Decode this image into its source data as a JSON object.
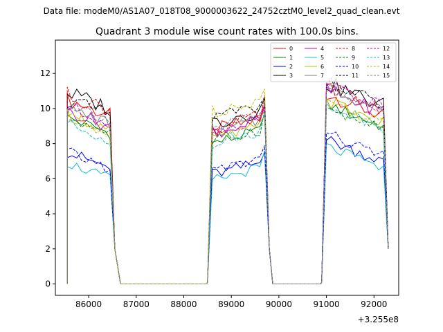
{
  "suptitle": "Data file: modeM0/AS1A07_018T08_9000003622_24752cztM0_level2_quad_clean.evt",
  "chart_data": {
    "type": "line",
    "title": "Quadrant 3 module wise count rates with 100.0s bins.",
    "xlabel": "",
    "ylabel": "",
    "offset_text": "+3.255e8",
    "xlim": [
      85300,
      92520
    ],
    "ylim": [
      -0.65,
      13.9
    ],
    "xticks": [
      86000,
      87000,
      88000,
      89000,
      90000,
      91000,
      92000
    ],
    "xtick_labels": [
      "86000",
      "87000",
      "88000",
      "89000",
      "90000",
      "91000",
      "92000"
    ],
    "yticks": [
      0,
      2,
      4,
      6,
      8,
      10,
      12
    ],
    "ytick_labels": [
      "0",
      "2",
      "4",
      "6",
      "8",
      "10",
      "12"
    ],
    "grid": false,
    "legend_placement": "top-right",
    "legend_columns": 4,
    "segments": [
      {
        "start": 85550,
        "end": 86550,
        "step": 100
      },
      {
        "start": 88500,
        "end": 89750,
        "step": 100
      },
      {
        "start": 90900,
        "end": 92300,
        "step": 100
      }
    ],
    "series": [
      {
        "name": "0",
        "color": "#ff0000",
        "dash": "solid",
        "levels": [
          10.0,
          9.1,
          10.2
        ],
        "variation": 0.45
      },
      {
        "name": "1",
        "color": "#008000",
        "dash": "solid",
        "levels": [
          9.0,
          8.4,
          9.6
        ],
        "variation": 0.35
      },
      {
        "name": "2",
        "color": "#0000ff",
        "dash": "solid",
        "levels": [
          7.0,
          6.6,
          7.6
        ],
        "variation": 0.35
      },
      {
        "name": "3",
        "color": "#000000",
        "dash": "solid",
        "levels": [
          10.4,
          9.6,
          10.8
        ],
        "variation": 0.5
      },
      {
        "name": "4",
        "color": "#bf00bf",
        "dash": "solid",
        "levels": [
          9.4,
          9.0,
          10.4
        ],
        "variation": 0.4
      },
      {
        "name": "5",
        "color": "#17becf",
        "dash": "solid",
        "levels": [
          6.4,
          6.3,
          7.2
        ],
        "variation": 0.3
      },
      {
        "name": "6",
        "color": "#bfbf00",
        "dash": "solid",
        "levels": [
          9.2,
          8.6,
          9.8
        ],
        "variation": 0.4
      },
      {
        "name": "7",
        "color": "#7f7f7f",
        "dash": "solid",
        "levels": [
          9.5,
          9.0,
          10.6
        ],
        "variation": 0.4
      },
      {
        "name": "8",
        "color": "#ff0000",
        "dash": "dashed",
        "levels": [
          10.3,
          9.2,
          10.6
        ],
        "variation": 0.45
      },
      {
        "name": "9",
        "color": "#008000",
        "dash": "dashed",
        "levels": [
          9.0,
          8.5,
          9.4
        ],
        "variation": 0.35
      },
      {
        "name": "10",
        "color": "#0000ff",
        "dash": "dashed",
        "levels": [
          7.0,
          6.8,
          7.9
        ],
        "variation": 0.35
      },
      {
        "name": "11",
        "color": "#000000",
        "dash": "dashed",
        "levels": [
          10.0,
          9.8,
          10.8
        ],
        "variation": 0.45
      },
      {
        "name": "12",
        "color": "#bf00bf",
        "dash": "dashed",
        "levels": [
          9.6,
          9.1,
          10.7
        ],
        "variation": 0.4
      },
      {
        "name": "13",
        "color": "#17becf",
        "dash": "dashed",
        "levels": [
          8.6,
          8.4,
          9.6
        ],
        "variation": 0.35
      },
      {
        "name": "14",
        "color": "#bfbf00",
        "dash": "dashed",
        "levels": [
          9.0,
          10.2,
          9.8
        ],
        "variation": 0.4
      },
      {
        "name": "15",
        "color": "#7f7f7f",
        "dash": "dashed",
        "levels": [
          9.8,
          9.2,
          10.4
        ],
        "variation": 0.4
      }
    ]
  }
}
